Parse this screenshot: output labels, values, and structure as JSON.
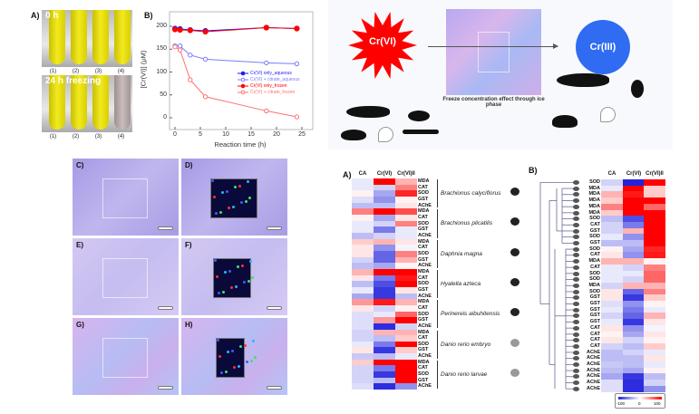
{
  "panel_a_photos": {
    "label": "A)",
    "top_caption": "0 h",
    "bottom_caption": "24 h freezing",
    "tube_labels": [
      "(1)",
      "(2)",
      "(3)",
      "(4)"
    ],
    "tube_colors_top": [
      "#e8df10",
      "#e8df10",
      "#e8df10",
      "#e8df10"
    ],
    "tube_colors_bottom": [
      "#e8df10",
      "#e8df10",
      "#e8df10",
      "#b8aaa9"
    ]
  },
  "chart_data": {
    "type": "line",
    "label": "B)",
    "title": "",
    "xlabel": "Reaction time (h)",
    "ylabel": "[Cr(VI)] (μM)",
    "xlim": [
      0,
      25
    ],
    "ylim": [
      0,
      220
    ],
    "xticks": [
      0,
      5,
      10,
      15,
      20,
      25
    ],
    "yticks": [
      0,
      50,
      100,
      150,
      200
    ],
    "legend_position": "center-right",
    "series": [
      {
        "name": "Cr(VI) only_aqueous",
        "color": "#1a1aff",
        "marker": "filled",
        "x": [
          0,
          1,
          3,
          6,
          18,
          24
        ],
        "y": [
          195,
          194,
          192,
          190,
          197,
          195
        ]
      },
      {
        "name": "Cr(VI) + citrate_aqueous",
        "color": "#7a7aff",
        "marker": "open",
        "x": [
          0,
          1,
          3,
          6,
          18,
          24
        ],
        "y": [
          157,
          157,
          137,
          128,
          120,
          118
        ]
      },
      {
        "name": "Cr(VI) only_frozen",
        "color": "#ff0000",
        "marker": "filled",
        "x": [
          0,
          1,
          3,
          6,
          18,
          24
        ],
        "y": [
          193,
          192,
          191,
          188,
          197,
          195
        ]
      },
      {
        "name": "Cr(VI) + citrate_frozen",
        "color": "#ff7070",
        "marker": "open",
        "x": [
          0,
          1,
          3,
          6,
          18,
          24
        ],
        "y": [
          155,
          148,
          83,
          46,
          15,
          2
        ]
      }
    ]
  },
  "abstract": {
    "reactant": "Cr(VI)",
    "product": "Cr(III)",
    "process": "Freeze concentration effect through ice phase",
    "reactant_color": "#ff0000",
    "product_color": "#2f6cf2"
  },
  "micro_panels": [
    {
      "label": "C)",
      "map": false
    },
    {
      "label": "D)",
      "map": true
    },
    {
      "label": "E)",
      "map": false
    },
    {
      "label": "F)",
      "map": true
    },
    {
      "label": "G)",
      "map": false
    },
    {
      "label": "H)",
      "map": true
    }
  ],
  "heatmap_a": {
    "label": "A)",
    "columns": [
      "CA",
      "Cr(VI)",
      "Cr(VI)ll"
    ],
    "groups": [
      {
        "species": "Brachionus calyciflorus",
        "rows": [
          [
            "MDA",
            -0.1,
            1,
            0.3
          ],
          [
            "CAT",
            -0.1,
            -0.2,
            0.5
          ],
          [
            "SOD",
            0.05,
            -0.4,
            0.85
          ],
          [
            "GST",
            -0.15,
            -0.5,
            0.05
          ],
          [
            "AChE",
            -0.3,
            -0.3,
            0.1
          ]
        ]
      },
      {
        "species": "Brachionus plicatilis",
        "rows": [
          [
            "MDA",
            0.5,
            1,
            0.7
          ],
          [
            "CAT",
            0.05,
            -0.4,
            0.1
          ],
          [
            "SOD",
            -0.1,
            -0.2,
            0.5
          ],
          [
            "GST",
            -0.1,
            -0.6,
            -0.1
          ],
          [
            "AChE",
            -0.3,
            -0.2,
            -0.1
          ]
        ]
      },
      {
        "species": "Daphnia magna",
        "rows": [
          [
            "MDA",
            0.2,
            0.3,
            0.1
          ],
          [
            "CAT",
            0.1,
            -0.5,
            -0.05
          ],
          [
            "SOD",
            0.1,
            -0.7,
            0.5
          ],
          [
            "GST",
            -0.2,
            -0.7,
            0.3
          ],
          [
            "AChE",
            -0.3,
            -0.4,
            0.05
          ]
        ]
      },
      {
        "species": "Hyalella azteca",
        "rows": [
          [
            "MDA",
            0.3,
            1,
            1
          ],
          [
            "CAT",
            0.1,
            -0.6,
            0.9
          ],
          [
            "SOD",
            -0.3,
            -0.8,
            1
          ],
          [
            "GST",
            -0.1,
            -0.9,
            0.1
          ],
          [
            "AChE",
            -0.4,
            -0.9,
            -0.3
          ]
        ]
      },
      {
        "species": "Perinereis aibuhitensis",
        "rows": [
          [
            "MDA",
            0.4,
            0.9,
            0.3
          ],
          [
            "CAT",
            0.1,
            -0.2,
            0.05
          ],
          [
            "SOD",
            -0.15,
            -0.1,
            0.6
          ],
          [
            "GST",
            -0.15,
            0.4,
            1
          ],
          [
            "AChE",
            -0.15,
            -0.95,
            -0.2
          ]
        ]
      },
      {
        "species": "Danio rerio embryo",
        "rows": [
          [
            "MDA",
            -0.2,
            0.3,
            0.3
          ],
          [
            "CAT",
            -0.2,
            -0.3,
            0.2
          ],
          [
            "SOD",
            -0.1,
            -0.6,
            1
          ],
          [
            "GST",
            0.1,
            -0.9,
            0.2
          ],
          [
            "AChE",
            -0.25,
            -0.3,
            -0.1
          ]
        ]
      },
      {
        "species": "Danio rerio larvae",
        "rows": [
          [
            "MDA",
            0.2,
            1,
            1
          ],
          [
            "CAT",
            -0.2,
            -0.6,
            1
          ],
          [
            "SOD",
            -0.2,
            -0.9,
            1
          ],
          [
            "GST",
            -0.2,
            -0.3,
            1
          ],
          [
            "AChE",
            -0.15,
            -0.95,
            -0.5
          ]
        ]
      }
    ]
  },
  "heatmap_b": {
    "label": "B)",
    "columns": [
      "CA",
      "Cr(VI)",
      "Cr(VI)ll"
    ],
    "rows": [
      [
        "SOD",
        -0.2,
        -1,
        1
      ],
      [
        "MDA",
        -0.1,
        1,
        0.2
      ],
      [
        "MDA",
        0.3,
        0.9,
        0.2
      ],
      [
        "MDA",
        0.2,
        1,
        1
      ],
      [
        "MDA",
        0.5,
        1,
        0.6
      ],
      [
        "MDA",
        0.2,
        1,
        1
      ],
      [
        "SOD",
        -0.3,
        -0.8,
        1
      ],
      [
        "CAT",
        -0.2,
        -0.6,
        1
      ],
      [
        "GST",
        -0.2,
        0.3,
        1
      ],
      [
        "SOD",
        -0.1,
        -0.5,
        1
      ],
      [
        "GST",
        -0.3,
        -0.3,
        1
      ],
      [
        "SOD",
        0.05,
        -0.4,
        0.85
      ],
      [
        "CAT",
        0.1,
        -0.5,
        0.9
      ],
      [
        "MDA",
        0.3,
        0.3,
        0.05
      ],
      [
        "CAT",
        -0.1,
        -0.2,
        0.5
      ],
      [
        "SOD",
        -0.1,
        -0.1,
        0.6
      ],
      [
        "SOD",
        -0.1,
        -0.2,
        0.6
      ],
      [
        "MDA",
        -0.2,
        0.3,
        0.3
      ],
      [
        "SOD",
        0.1,
        -0.7,
        0.5
      ],
      [
        "GST",
        0.1,
        -0.9,
        0.2
      ],
      [
        "GST",
        -0.15,
        -0.5,
        0.05
      ],
      [
        "GST",
        -0.1,
        -0.6,
        -0.1
      ],
      [
        "GST",
        -0.2,
        -0.7,
        0.3
      ],
      [
        "GST",
        -0.1,
        -0.9,
        0.1
      ],
      [
        "CAT",
        0.1,
        -0.5,
        -0.05
      ],
      [
        "CAT",
        0.05,
        -0.4,
        0.1
      ],
      [
        "CAT",
        0.1,
        -0.2,
        0.05
      ],
      [
        "CAT",
        -0.2,
        -0.3,
        0.2
      ],
      [
        "AChE",
        -0.3,
        -0.2,
        -0.1
      ],
      [
        "AChE",
        -0.3,
        -0.3,
        0.1
      ],
      [
        "AChE",
        -0.25,
        -0.3,
        -0.1
      ],
      [
        "AChE",
        -0.3,
        -0.4,
        0.05
      ],
      [
        "AChE",
        -0.4,
        -0.9,
        -0.3
      ],
      [
        "AChE",
        -0.15,
        -0.95,
        -0.2
      ],
      [
        "AChE",
        -0.15,
        -0.95,
        -0.5
      ]
    ],
    "colorbar": {
      "min_label": "-100",
      "mid_label": "0",
      "max_label": "100",
      "low_color": "#2222dd",
      "high_color": "#ff0000"
    }
  }
}
